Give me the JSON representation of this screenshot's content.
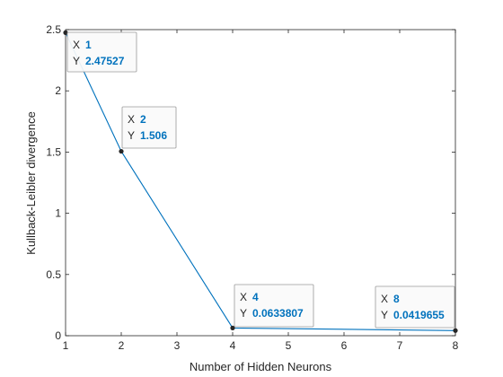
{
  "chart_data": {
    "type": "line",
    "x": [
      1,
      2,
      4,
      8
    ],
    "series": [
      {
        "values": [
          2.47527,
          1.506,
          0.0633807,
          0.0419655
        ],
        "color": "#0072bd"
      }
    ],
    "xlabel": "Number of Hidden Neurons",
    "ylabel": "Kullback-Leibler divergence",
    "xlim": [
      1,
      8
    ],
    "ylim": [
      0,
      2.5
    ],
    "xticks": [
      1,
      2,
      3,
      4,
      5,
      6,
      7,
      8
    ],
    "yticks": [
      0,
      0.5,
      1,
      1.5,
      2,
      2.5
    ],
    "xtick_labels": [
      "1",
      "2",
      "3",
      "4",
      "5",
      "6",
      "7",
      "8"
    ],
    "ytick_labels": [
      "0",
      "0.5",
      "1",
      "1.5",
      "2",
      "2.5"
    ],
    "grid": false,
    "datatips": [
      {
        "x_key": "X",
        "x_val": "1",
        "y_key": "Y",
        "y_val": "2.47527"
      },
      {
        "x_key": "X",
        "x_val": "2",
        "y_key": "Y",
        "y_val": "1.506"
      },
      {
        "x_key": "X",
        "x_val": "4",
        "y_key": "Y",
        "y_val": "0.0633807"
      },
      {
        "x_key": "X",
        "x_val": "8",
        "y_key": "Y",
        "y_val": "0.0419655"
      }
    ]
  }
}
